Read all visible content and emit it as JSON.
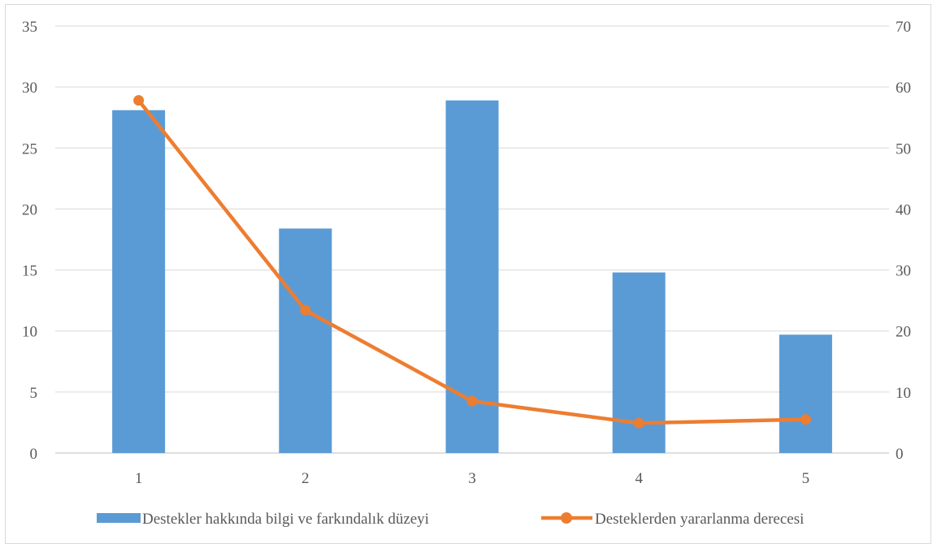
{
  "chart_data": {
    "type": "bar",
    "categories": [
      "1",
      "2",
      "3",
      "4",
      "5"
    ],
    "y_left": {
      "min": 0,
      "max": 35,
      "step": 5,
      "ticks": [
        "0",
        "5",
        "10",
        "15",
        "20",
        "25",
        "30",
        "35"
      ]
    },
    "y_right": {
      "min": 0,
      "max": 70,
      "step": 10,
      "ticks": [
        "0",
        "10",
        "20",
        "30",
        "40",
        "50",
        "60",
        "70"
      ]
    },
    "series": [
      {
        "name": "Destekler hakkında bilgi ve farkındalık düzeyi",
        "type": "bar",
        "axis": "left",
        "color": "#5b9bd5",
        "values": [
          28.1,
          18.4,
          28.9,
          14.8,
          9.7
        ]
      },
      {
        "name": "Desteklerden yararlanma derecesi",
        "type": "line",
        "axis": "right",
        "color": "#ed7d31",
        "values": [
          57.8,
          23.4,
          8.5,
          4.9,
          5.5
        ]
      }
    ],
    "grid": true,
    "legend_position": "bottom",
    "title": "",
    "xlabel": "",
    "ylabel": ""
  }
}
